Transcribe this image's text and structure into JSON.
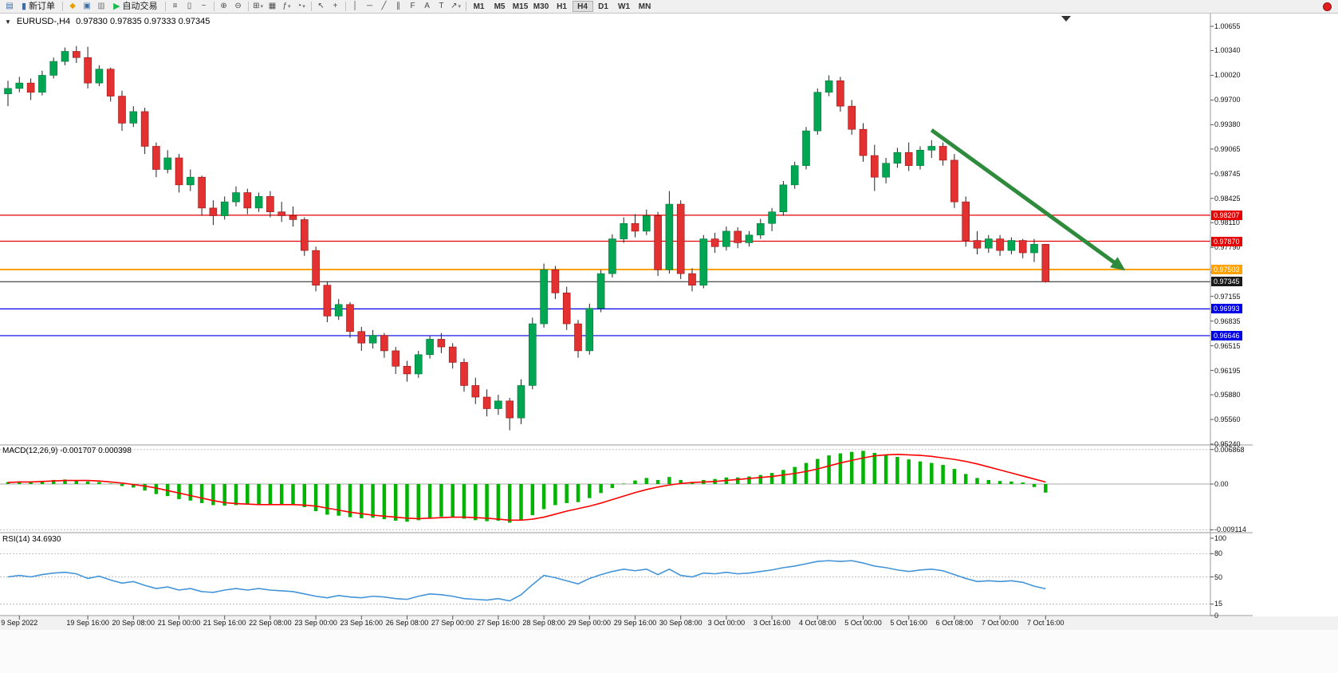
{
  "toolbar": {
    "buttons": [
      {
        "name": "chart-window-icon",
        "glyph": "▤",
        "color": "#3a6ea5"
      },
      {
        "name": "new-order-button",
        "label": "新订单",
        "glyph": "▮",
        "glyph_color": "#3a6ea5",
        "labeled": true
      },
      {
        "name": "sep1",
        "sep": true
      },
      {
        "name": "metaeditor-icon",
        "glyph": "◆",
        "color": "#e8a000"
      },
      {
        "name": "market-icon",
        "glyph": "▣",
        "color": "#3a6ea5"
      },
      {
        "name": "profile-icon",
        "glyph": "▥",
        "color": "#777777"
      },
      {
        "name": "autotrade-button",
        "label": "自动交易",
        "glyph": "▶",
        "glyph_color": "#1db954",
        "labeled": true
      },
      {
        "name": "sep2",
        "sep": true
      },
      {
        "name": "bar-chart-icon",
        "glyph": "≡"
      },
      {
        "name": "candlestick-icon",
        "glyph": "▯"
      },
      {
        "name": "line-chart-icon",
        "glyph": "~"
      },
      {
        "name": "sep3",
        "sep": true
      },
      {
        "name": "zoom-in-icon",
        "glyph": "⊕"
      },
      {
        "name": "zoom-out-icon",
        "glyph": "⊖"
      },
      {
        "name": "sep4",
        "sep": true
      },
      {
        "name": "tile-windows-icon",
        "glyph": "⊞",
        "caret": true
      },
      {
        "name": "auto-arrange-icon",
        "glyph": "▦"
      },
      {
        "name": "indicators-icon",
        "glyph": "ƒ",
        "caret": true
      },
      {
        "name": "clock-icon",
        "glyph": "◔",
        "caret": true
      },
      {
        "name": "sep5",
        "sep": true
      },
      {
        "name": "cursor-icon",
        "glyph": "↖"
      },
      {
        "name": "crosshair-icon",
        "glyph": "+"
      },
      {
        "name": "sep6",
        "sep": true
      },
      {
        "name": "vertical-line-icon",
        "glyph": "│"
      },
      {
        "name": "horizontal-line-icon",
        "glyph": "─"
      },
      {
        "name": "trendline-icon",
        "glyph": "╱"
      },
      {
        "name": "channel-icon",
        "glyph": "∥"
      },
      {
        "name": "fibonacci-icon",
        "glyph": "F"
      },
      {
        "name": "text-icon",
        "glyph": "A"
      },
      {
        "name": "label-icon",
        "glyph": "T"
      },
      {
        "name": "arrows-icon",
        "glyph": "↗",
        "caret": true
      },
      {
        "name": "sep7",
        "sep": true
      }
    ],
    "timeframes": [
      "M1",
      "M5",
      "M15",
      "M30",
      "H1",
      "H4",
      "D1",
      "W1",
      "MN"
    ],
    "active_timeframe": "H4"
  },
  "chart": {
    "title": "EURUSD-,H4",
    "ohlc": "0.97830 0.97835 0.97333 0.97345",
    "price_axis": [
      "1.00655",
      "1.00340",
      "1.00020",
      "0.99700",
      "0.99380",
      "0.99065",
      "0.98745",
      "0.98425",
      "0.98110",
      "0.97790",
      "0.97470",
      "0.97155",
      "0.96835",
      "0.96515",
      "0.96195",
      "0.95880",
      "0.95560",
      "0.95240"
    ],
    "price_lines": [
      {
        "price": "0.98207",
        "value": 0.98207,
        "color": "#e60000",
        "width": 1.2,
        "type": "resistance"
      },
      {
        "price": "0.97870",
        "value": 0.9787,
        "color": "#e60000",
        "width": 1.2,
        "type": "resistance"
      },
      {
        "price": "0.97503",
        "value": 0.97503,
        "color": "#ffa200",
        "width": 2,
        "type": "pivot"
      },
      {
        "price": "0.97345",
        "value": 0.97345,
        "color": "#1a1a1a",
        "width": 1,
        "type": "current-price"
      },
      {
        "price": "0.96993",
        "value": 0.96993,
        "color": "#0000e6",
        "width": 1.2,
        "type": "support"
      },
      {
        "price": "0.96646",
        "value": 0.96646,
        "color": "#0000e6",
        "width": 1.2,
        "type": "support"
      }
    ],
    "time_axis": [
      "9 Sep 2022",
      "19 Sep 16:00",
      "20 Sep 08:00",
      "21 Sep 00:00",
      "21 Sep 16:00",
      "22 Sep 08:00",
      "23 Sep 00:00",
      "23 Sep 16:00",
      "26 Sep 08:00",
      "27 Sep 00:00",
      "27 Sep 16:00",
      "28 Sep 08:00",
      "29 Sep 00:00",
      "29 Sep 16:00",
      "30 Sep 08:00",
      "3 Oct 00:00",
      "3 Oct 16:00",
      "4 Oct 08:00",
      "5 Oct 00:00",
      "5 Oct 16:00",
      "6 Oct 08:00",
      "7 Oct 00:00",
      "7 Oct 16:00"
    ]
  },
  "macd": {
    "label": "MACD(12,26,9)",
    "values": "-0.001707 0.000398",
    "axis": [
      "0.006868",
      "0.00",
      "-0.009114"
    ]
  },
  "rsi": {
    "label": "RSI(14)",
    "value": "34.6930",
    "axis": [
      "100",
      "80",
      "50",
      "15",
      "0"
    ]
  },
  "chart_data": {
    "type": "candlestick",
    "symbol": "EURUSD-",
    "timeframe": "H4",
    "price_range": [
      0.9524,
      1.00655
    ],
    "current_ohlc": {
      "open": 0.9783,
      "high": 0.97835,
      "low": 0.97333,
      "close": 0.97345
    },
    "up_color": "#00a651",
    "down_color": "#e33030",
    "candles": [
      [
        0.9978,
        0.9995,
        0.9962,
        0.9985
      ],
      [
        0.9985,
        1.0,
        0.998,
        0.9992
      ],
      [
        0.9992,
        0.9998,
        0.997,
        0.998
      ],
      [
        0.998,
        1.0008,
        0.9976,
        1.0002
      ],
      [
        1.0002,
        1.0025,
        0.9998,
        1.002
      ],
      [
        1.002,
        1.0038,
        1.0015,
        1.0033
      ],
      [
        1.0033,
        1.004,
        1.0018,
        1.0025
      ],
      [
        1.0025,
        1.0039,
        0.9985,
        0.9992
      ],
      [
        0.9992,
        1.0015,
        0.9988,
        1.001
      ],
      [
        1.001,
        1.0012,
        0.9968,
        0.9975
      ],
      [
        0.9975,
        0.9982,
        0.993,
        0.994
      ],
      [
        0.994,
        0.9962,
        0.9935,
        0.9955
      ],
      [
        0.9955,
        0.996,
        0.99,
        0.991
      ],
      [
        0.991,
        0.9915,
        0.987,
        0.988
      ],
      [
        0.988,
        0.9905,
        0.9875,
        0.9895
      ],
      [
        0.9895,
        0.99,
        0.985,
        0.986
      ],
      [
        0.986,
        0.988,
        0.9852,
        0.987
      ],
      [
        0.987,
        0.9872,
        0.982,
        0.983
      ],
      [
        0.983,
        0.984,
        0.9808,
        0.982
      ],
      [
        0.982,
        0.9845,
        0.9815,
        0.9838
      ],
      [
        0.9838,
        0.9858,
        0.9832,
        0.985
      ],
      [
        0.985,
        0.9855,
        0.9822,
        0.983
      ],
      [
        0.983,
        0.985,
        0.9825,
        0.9845
      ],
      [
        0.9845,
        0.9852,
        0.9818,
        0.9825
      ],
      [
        0.9825,
        0.9838,
        0.9812,
        0.982
      ],
      [
        0.982,
        0.9832,
        0.9806,
        0.9815
      ],
      [
        0.9815,
        0.9818,
        0.9768,
        0.9775
      ],
      [
        0.9775,
        0.978,
        0.9722,
        0.973
      ],
      [
        0.973,
        0.9735,
        0.9682,
        0.969
      ],
      [
        0.969,
        0.9712,
        0.9685,
        0.9705
      ],
      [
        0.9705,
        0.9708,
        0.9662,
        0.967
      ],
      [
        0.967,
        0.9676,
        0.9645,
        0.9655
      ],
      [
        0.9655,
        0.9672,
        0.9648,
        0.9665
      ],
      [
        0.9665,
        0.9668,
        0.9636,
        0.9645
      ],
      [
        0.9645,
        0.965,
        0.9615,
        0.9625
      ],
      [
        0.9625,
        0.9632,
        0.9605,
        0.9615
      ],
      [
        0.9615,
        0.9645,
        0.961,
        0.964
      ],
      [
        0.964,
        0.9665,
        0.9635,
        0.966
      ],
      [
        0.966,
        0.9668,
        0.9642,
        0.965
      ],
      [
        0.965,
        0.9655,
        0.9622,
        0.963
      ],
      [
        0.963,
        0.9635,
        0.9592,
        0.96
      ],
      [
        0.96,
        0.961,
        0.9576,
        0.9585
      ],
      [
        0.9585,
        0.9595,
        0.956,
        0.957
      ],
      [
        0.957,
        0.9588,
        0.9562,
        0.958
      ],
      [
        0.958,
        0.9584,
        0.9542,
        0.9558
      ],
      [
        0.9558,
        0.9608,
        0.955,
        0.96
      ],
      [
        0.96,
        0.9688,
        0.9595,
        0.968
      ],
      [
        0.968,
        0.9758,
        0.9675,
        0.975
      ],
      [
        0.975,
        0.9755,
        0.9712,
        0.972
      ],
      [
        0.972,
        0.9728,
        0.9672,
        0.968
      ],
      [
        0.968,
        0.9685,
        0.9636,
        0.9645
      ],
      [
        0.9645,
        0.9706,
        0.964,
        0.97
      ],
      [
        0.97,
        0.975,
        0.9695,
        0.9745
      ],
      [
        0.9745,
        0.9796,
        0.974,
        0.979
      ],
      [
        0.979,
        0.9818,
        0.9785,
        0.981
      ],
      [
        0.981,
        0.9822,
        0.9792,
        0.98
      ],
      [
        0.98,
        0.9828,
        0.9795,
        0.982
      ],
      [
        0.982,
        0.9825,
        0.9742,
        0.975
      ],
      [
        0.975,
        0.9852,
        0.9745,
        0.9835
      ],
      [
        0.9835,
        0.984,
        0.9738,
        0.9745
      ],
      [
        0.9745,
        0.9752,
        0.9722,
        0.973
      ],
      [
        0.973,
        0.9795,
        0.9726,
        0.979
      ],
      [
        0.979,
        0.9798,
        0.9772,
        0.978
      ],
      [
        0.978,
        0.9806,
        0.9775,
        0.98
      ],
      [
        0.98,
        0.9805,
        0.9778,
        0.9785
      ],
      [
        0.9785,
        0.98,
        0.978,
        0.9795
      ],
      [
        0.9795,
        0.9816,
        0.979,
        0.981
      ],
      [
        0.981,
        0.983,
        0.98,
        0.9825
      ],
      [
        0.9825,
        0.9865,
        0.982,
        0.986
      ],
      [
        0.986,
        0.989,
        0.9855,
        0.9885
      ],
      [
        0.9885,
        0.9935,
        0.988,
        0.993
      ],
      [
        0.993,
        0.9985,
        0.9925,
        0.998
      ],
      [
        0.998,
        1.0002,
        0.9975,
        0.9995
      ],
      [
        0.9995,
        1.0,
        0.9955,
        0.9962
      ],
      [
        0.9962,
        0.997,
        0.9925,
        0.9932
      ],
      [
        0.9932,
        0.994,
        0.989,
        0.9898
      ],
      [
        0.9898,
        0.9912,
        0.9852,
        0.987
      ],
      [
        0.987,
        0.9895,
        0.9862,
        0.9888
      ],
      [
        0.9888,
        0.9908,
        0.9882,
        0.9902
      ],
      [
        0.9902,
        0.9915,
        0.9878,
        0.9885
      ],
      [
        0.9885,
        0.991,
        0.988,
        0.9905
      ],
      [
        0.9905,
        0.9918,
        0.9895,
        0.991
      ],
      [
        0.991,
        0.9915,
        0.9885,
        0.9892
      ],
      [
        0.9892,
        0.99,
        0.983,
        0.9838
      ],
      [
        0.9838,
        0.9845,
        0.978,
        0.9788
      ],
      [
        0.9788,
        0.98,
        0.977,
        0.9778
      ],
      [
        0.9778,
        0.9795,
        0.9772,
        0.979
      ],
      [
        0.979,
        0.9795,
        0.9768,
        0.9775
      ],
      [
        0.9775,
        0.9792,
        0.977,
        0.9788
      ],
      [
        0.9788,
        0.979,
        0.9765,
        0.9772
      ],
      [
        0.9772,
        0.979,
        0.976,
        0.9783
      ],
      [
        0.9783,
        0.97835,
        0.97333,
        0.97345
      ]
    ],
    "macd_hist": [
      0.0004,
      0.0005,
      0.0004,
      0.0006,
      0.0008,
      0.0009,
      0.0008,
      0.0005,
      0.0004,
      0.0001,
      -0.0004,
      -0.0007,
      -0.0013,
      -0.002,
      -0.0024,
      -0.003,
      -0.0033,
      -0.0038,
      -0.0042,
      -0.0043,
      -0.0042,
      -0.0041,
      -0.004,
      -0.004,
      -0.0041,
      -0.0042,
      -0.0046,
      -0.0054,
      -0.0061,
      -0.0063,
      -0.0066,
      -0.0068,
      -0.0067,
      -0.007,
      -0.0073,
      -0.0075,
      -0.0072,
      -0.0068,
      -0.0065,
      -0.0066,
      -0.0069,
      -0.0072,
      -0.0074,
      -0.0073,
      -0.0077,
      -0.0071,
      -0.0062,
      -0.005,
      -0.0042,
      -0.0038,
      -0.0036,
      -0.0028,
      -0.0018,
      -0.0008,
      0.0001,
      0.0007,
      0.0012,
      0.0008,
      0.0014,
      0.0008,
      0.0004,
      0.0008,
      0.001,
      0.0013,
      0.0013,
      0.0015,
      0.0018,
      0.0022,
      0.0028,
      0.0034,
      0.0042,
      0.005,
      0.0057,
      0.0061,
      0.0064,
      0.0066,
      0.0062,
      0.0058,
      0.0054,
      0.0049,
      0.0045,
      0.0042,
      0.0038,
      0.003,
      0.002,
      0.0012,
      0.0008,
      0.0006,
      0.0005,
      0.0003,
      -0.0006,
      -0.001707
    ],
    "macd_signal": [
      0.0003,
      0.0004,
      0.0004,
      0.0005,
      0.0006,
      0.0007,
      0.0007,
      0.0007,
      0.0006,
      0.0004,
      0.0002,
      -0.0001,
      -0.0004,
      -0.0008,
      -0.0013,
      -0.0018,
      -0.0023,
      -0.0028,
      -0.0033,
      -0.0037,
      -0.0039,
      -0.004,
      -0.0041,
      -0.0041,
      -0.0041,
      -0.0041,
      -0.0042,
      -0.0044,
      -0.0048,
      -0.0052,
      -0.0056,
      -0.0059,
      -0.0062,
      -0.0064,
      -0.0066,
      -0.0068,
      -0.0069,
      -0.0068,
      -0.0067,
      -0.0066,
      -0.0066,
      -0.0067,
      -0.0068,
      -0.007,
      -0.0072,
      -0.0072,
      -0.007,
      -0.0066,
      -0.006,
      -0.0054,
      -0.0049,
      -0.0044,
      -0.0038,
      -0.0031,
      -0.0024,
      -0.0017,
      -0.0011,
      -0.0006,
      -0.0002,
      0.0001,
      0.0003,
      0.0004,
      0.0005,
      0.0007,
      0.0009,
      0.0011,
      0.0013,
      0.0015,
      0.0018,
      0.0021,
      0.0025,
      0.003,
      0.0036,
      0.0042,
      0.0047,
      0.0052,
      0.0056,
      0.0058,
      0.0059,
      0.0058,
      0.0057,
      0.0055,
      0.0052,
      0.0049,
      0.0045,
      0.004,
      0.0034,
      0.0028,
      0.0022,
      0.0016,
      0.001,
      0.000398
    ],
    "rsi": [
      50,
      52,
      50,
      53,
      55,
      56,
      54,
      48,
      51,
      46,
      42,
      44,
      39,
      35,
      37,
      33,
      35,
      31,
      30,
      33,
      35,
      33,
      35,
      33,
      32,
      31,
      28,
      25,
      23,
      26,
      24,
      23,
      25,
      24,
      22,
      21,
      25,
      28,
      27,
      25,
      22,
      21,
      20,
      22,
      19,
      27,
      40,
      52,
      49,
      45,
      41,
      48,
      53,
      57,
      60,
      58,
      60,
      53,
      60,
      52,
      50,
      55,
      54,
      56,
      54,
      55,
      57,
      59,
      62,
      64,
      67,
      70,
      71,
      70,
      71,
      68,
      64,
      62,
      59,
      57,
      59,
      60,
      58,
      53,
      48,
      44,
      45,
      44,
      45,
      43,
      38,
      34.693
    ],
    "rsi_levels": [
      80,
      50,
      15
    ],
    "arrow": {
      "from": {
        "candle": 81,
        "price": 0.9931
      },
      "to": {
        "candle": 98,
        "price": 0.9749
      },
      "color": "#2e8b3b",
      "width": 5
    }
  }
}
